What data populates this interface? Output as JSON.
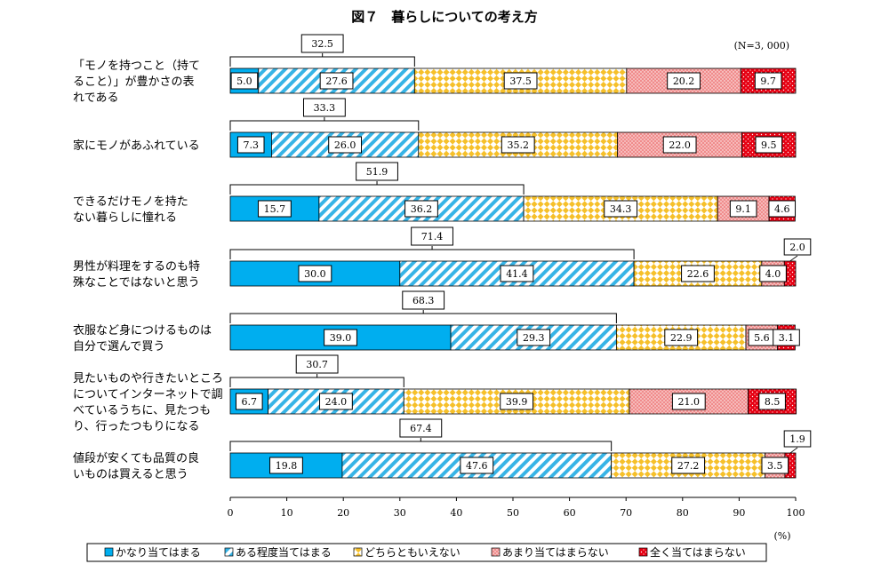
{
  "chart_data": {
    "type": "bar",
    "orientation": "horizontal-stacked-100",
    "title": "図７　暮らしについての考え方",
    "sample_note": "(N=3, 000)",
    "unit": "(%)",
    "xlim": [
      0,
      100
    ],
    "xticks": [
      "0",
      "10",
      "20",
      "30",
      "40",
      "50",
      "60",
      "70",
      "80",
      "90",
      "100"
    ],
    "series": [
      {
        "name": "かなり当てはまる",
        "color": "#00aeef"
      },
      {
        "name": "ある程度当てはまる",
        "color": "#37b4e6"
      },
      {
        "name": "どちらともいえない",
        "color": "#f6c02a"
      },
      {
        "name": "あまり当てはまらない",
        "color": "#f08c8c"
      },
      {
        "name": "全く当てはまらない",
        "color": "#e60012"
      }
    ],
    "categories": [
      {
        "label": [
          "「モノを持つこと（持て",
          "ること）」が豊かさの表",
          "れである"
        ],
        "values": [
          5.0,
          27.6,
          37.5,
          20.2,
          9.7
        ],
        "labels": [
          "5.0",
          "27.6",
          "37.5",
          "20.2",
          "9.7"
        ],
        "sum": "32.5",
        "outside": [
          false,
          false,
          false,
          false,
          false
        ]
      },
      {
        "label": [
          "家にモノがあふれている"
        ],
        "values": [
          7.3,
          26.0,
          35.2,
          22.0,
          9.5
        ],
        "labels": [
          "7.3",
          "26.0",
          "35.2",
          "22.0",
          "9.5"
        ],
        "sum": "33.3",
        "outside": [
          false,
          false,
          false,
          false,
          false
        ]
      },
      {
        "label": [
          "できるだけモノを持た",
          "ない暮らしに憧れる"
        ],
        "values": [
          15.7,
          36.2,
          34.3,
          9.1,
          4.6
        ],
        "labels": [
          "15.7",
          "36.2",
          "34.3",
          "9.1",
          "4.6"
        ],
        "sum": "51.9",
        "outside": [
          false,
          false,
          false,
          false,
          false
        ]
      },
      {
        "label": [
          "男性が料理をするのも特",
          "殊なことではないと思う"
        ],
        "values": [
          30.0,
          41.4,
          22.6,
          4.0,
          2.0
        ],
        "labels": [
          "30.0",
          "41.4",
          "22.6",
          "4.0",
          "2.0"
        ],
        "sum": "71.4",
        "outside": [
          false,
          false,
          false,
          false,
          true
        ]
      },
      {
        "label": [
          "衣服など身につけるものは",
          "自分で選んで買う"
        ],
        "values": [
          39.0,
          29.3,
          22.9,
          5.6,
          3.1
        ],
        "labels": [
          "39.0",
          "29.3",
          "22.9",
          "5.6",
          "3.1"
        ],
        "sum": "68.3",
        "outside": [
          false,
          false,
          false,
          false,
          false
        ]
      },
      {
        "label": [
          "見たいものや行きたいところ",
          "についてインターネットで調",
          "べているうちに、見たつも",
          "り、行ったつもりになる"
        ],
        "values": [
          6.7,
          24.0,
          39.9,
          21.0,
          8.5
        ],
        "labels": [
          "6.7",
          "24.0",
          "39.9",
          "21.0",
          "8.5"
        ],
        "sum": "30.7",
        "outside": [
          false,
          false,
          false,
          false,
          false
        ]
      },
      {
        "label": [
          "値段が安くても品質の良",
          "いものは買えると思う"
        ],
        "values": [
          19.8,
          47.6,
          27.2,
          3.5,
          1.9
        ],
        "labels": [
          "19.8",
          "47.6",
          "27.2",
          "3.5",
          "1.9"
        ],
        "sum": "67.4",
        "outside": [
          false,
          false,
          false,
          false,
          true
        ]
      }
    ]
  }
}
